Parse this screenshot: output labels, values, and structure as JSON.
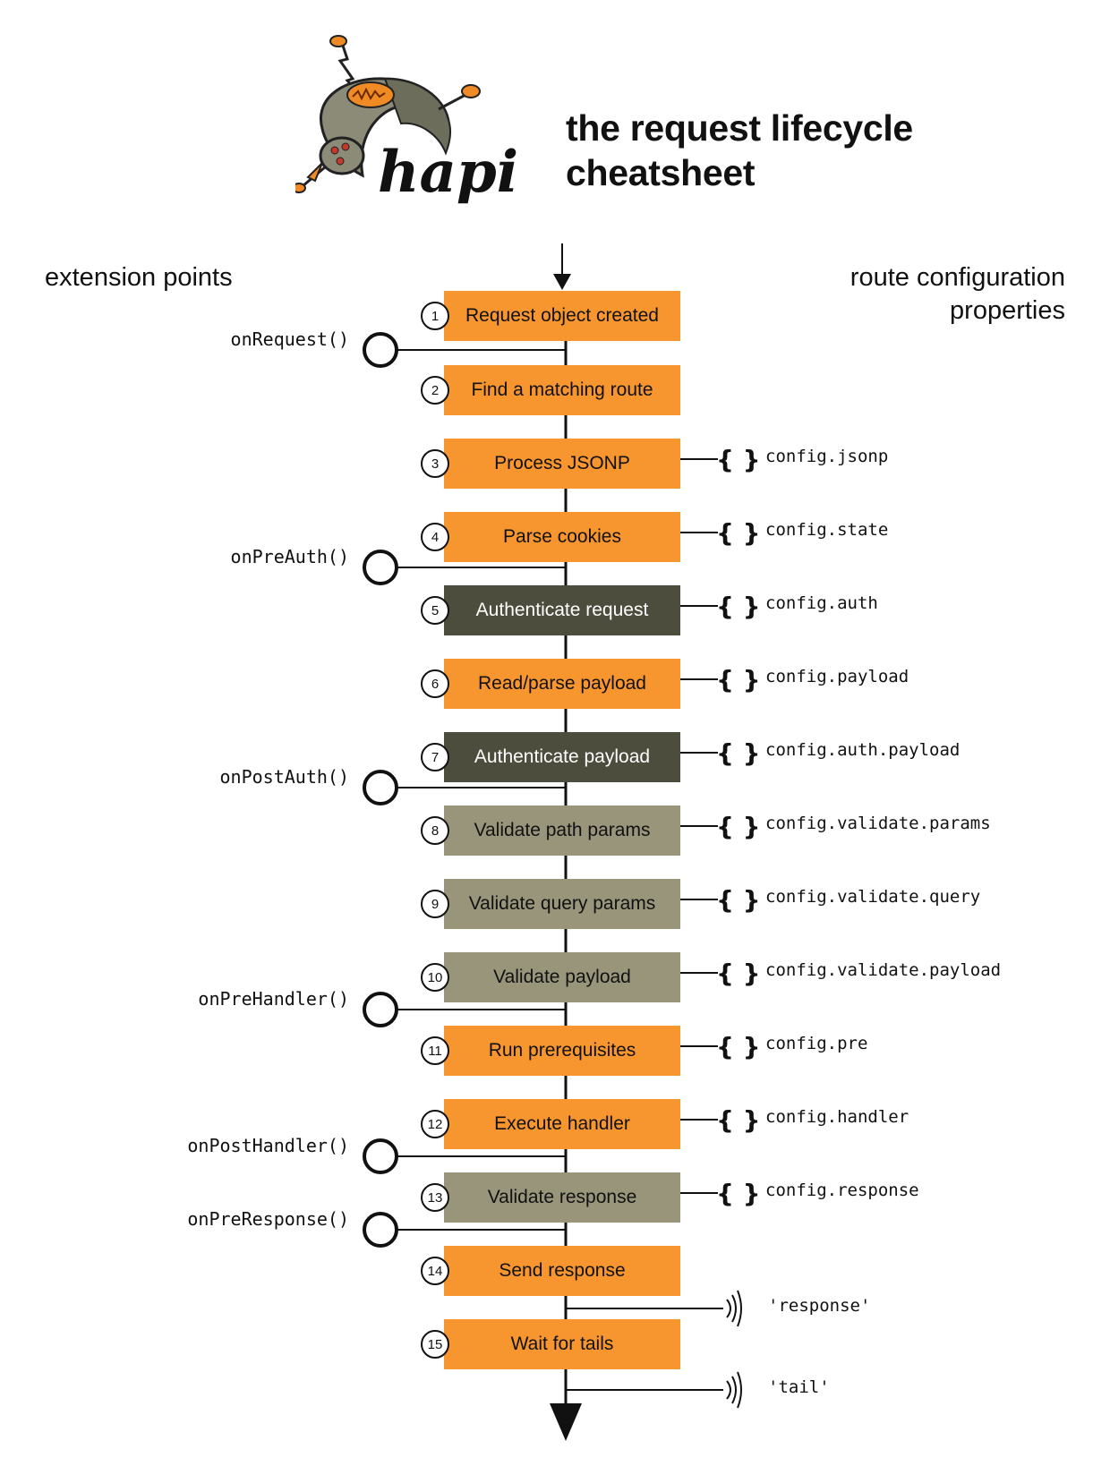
{
  "header": {
    "logo_text": "hapi",
    "title_line1": "the request lifecycle",
    "title_line2": "cheatsheet"
  },
  "columns": {
    "left": "extension points",
    "right_line1": "route configuration",
    "right_line2": "properties"
  },
  "steps": [
    {
      "num": "1",
      "label": "Request object created",
      "style": "orange"
    },
    {
      "num": "2",
      "label": "Find a matching route",
      "style": "orange"
    },
    {
      "num": "3",
      "label": "Process JSONP",
      "style": "orange"
    },
    {
      "num": "4",
      "label": "Parse cookies",
      "style": "orange"
    },
    {
      "num": "5",
      "label": "Authenticate request",
      "style": "dark"
    },
    {
      "num": "6",
      "label": "Read/parse payload",
      "style": "orange"
    },
    {
      "num": "7",
      "label": "Authenticate payload",
      "style": "dark"
    },
    {
      "num": "8",
      "label": "Validate path params",
      "style": "grey"
    },
    {
      "num": "9",
      "label": "Validate query params",
      "style": "grey"
    },
    {
      "num": "10",
      "label": "Validate payload",
      "style": "grey"
    },
    {
      "num": "11",
      "label": "Run prerequisites",
      "style": "orange"
    },
    {
      "num": "12",
      "label": "Execute handler",
      "style": "orange"
    },
    {
      "num": "13",
      "label": "Validate response",
      "style": "grey"
    },
    {
      "num": "14",
      "label": "Send response",
      "style": "orange"
    },
    {
      "num": "15",
      "label": "Wait for tails",
      "style": "orange"
    }
  ],
  "extension_points": [
    "onRequest()",
    "onPreAuth()",
    "onPostAuth()",
    "onPreHandler()",
    "onPostHandler()",
    "onPreResponse()"
  ],
  "config_properties": [
    "config.jsonp",
    "config.state",
    "config.auth",
    "config.payload",
    "config.auth.payload",
    "config.validate.params",
    "config.validate.query",
    "config.validate.payload",
    "config.pre",
    "config.handler",
    "config.response"
  ],
  "events": [
    "'response'",
    "'tail'"
  ],
  "colors": {
    "orange": "#f7962f",
    "dark": "#4d4d3e",
    "grey": "#98957b"
  }
}
